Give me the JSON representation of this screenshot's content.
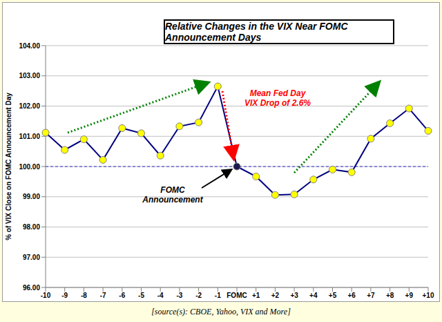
{
  "chart_data": {
    "type": "line",
    "title": "Relative Changes in the VIX Near FOMC Announcement Days",
    "y_label": "% of VIX Close on FOMC Announcement Day",
    "categories": [
      "-10",
      "-9",
      "-8",
      "-7",
      "-6",
      "-5",
      "-4",
      "-3",
      "-2",
      "-1",
      "FOMC",
      "+1",
      "+2",
      "+3",
      "+4",
      "+5",
      "+6",
      "+7",
      "+8",
      "+9",
      "+10"
    ],
    "series": [
      {
        "name": "VIX",
        "color": "#000080",
        "marker": "circle",
        "colors": [
          "#ffff00",
          "#ffff00",
          "#ffff00",
          "#ffff00",
          "#ffff00",
          "#ffff00",
          "#ffff00",
          "#ffff00",
          "#ffff00",
          "#ffff00",
          "#1a1a4d",
          "#ffff00",
          "#ffff00",
          "#ffff00",
          "#ffff00",
          "#ffff00",
          "#ffff00",
          "#ffff00",
          "#ffff00",
          "#ffff00",
          "#ffff00"
        ],
        "values": [
          101.12,
          100.55,
          100.9,
          100.22,
          101.27,
          101.1,
          100.36,
          101.33,
          101.46,
          102.65,
          100.0,
          99.67,
          99.06,
          99.08,
          99.57,
          99.9,
          99.81,
          100.92,
          101.43,
          101.92,
          101.18
        ]
      }
    ],
    "ylim": [
      96,
      104
    ],
    "yticks": [
      {
        "value": 96,
        "label": "96.00"
      },
      {
        "value": 97,
        "label": "97.00"
      },
      {
        "value": 98,
        "label": "98.00"
      },
      {
        "value": 99,
        "label": "99.00"
      },
      {
        "value": 100,
        "label": "100.00"
      },
      {
        "value": 101,
        "label": "101.00"
      },
      {
        "value": 102,
        "label": "102.00"
      },
      {
        "value": 103,
        "label": "103.00"
      },
      {
        "value": 104,
        "label": "104.00"
      }
    ],
    "reference_line": {
      "value": 100,
      "color": "#3333cc",
      "line_style": "dashed"
    },
    "grid": true,
    "annotations": [
      {
        "text": "Mean Fed Day VIX Drop of 2.6%",
        "color": "#ff0000"
      },
      {
        "text": "FOMC Announcement",
        "color": "#000000"
      }
    ],
    "source": "[source(s): CBOE, Yahoo, VIX and More]"
  }
}
